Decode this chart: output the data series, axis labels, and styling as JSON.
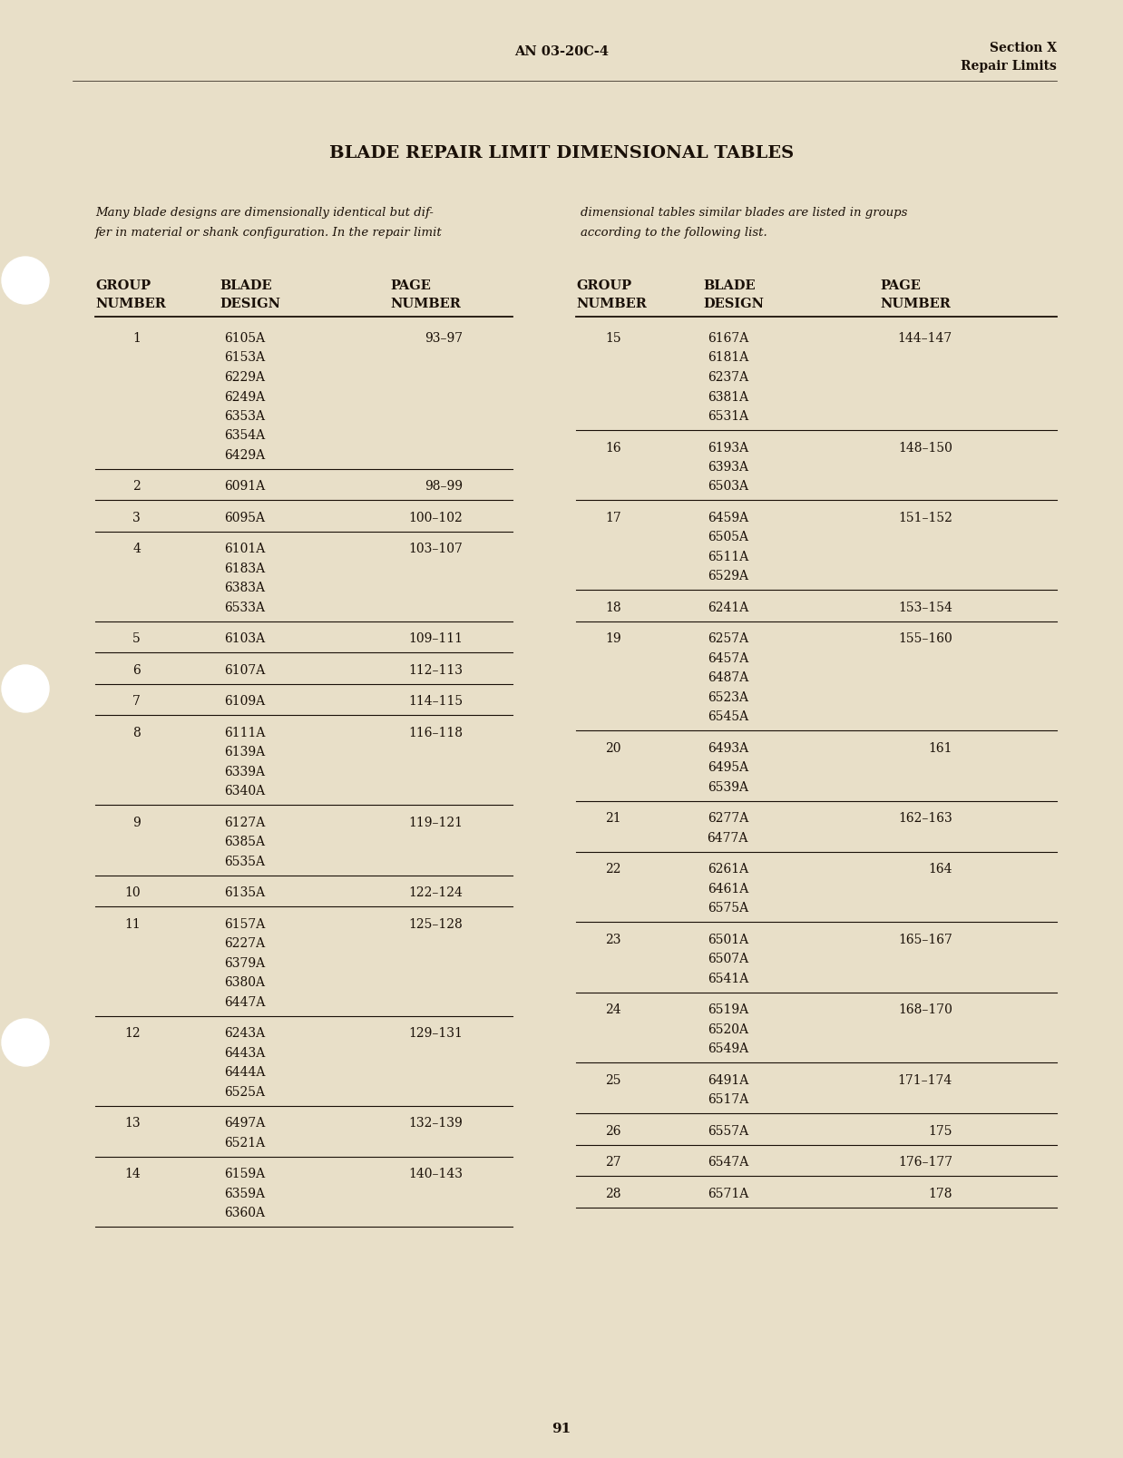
{
  "bg_color": "#e8dfc8",
  "text_color": "#1a1008",
  "page_header_center": "AN 03-20C-4",
  "page_header_right_line1": "Section X",
  "page_header_right_line2": "Repair Limits",
  "title": "BLADE REPAIR LIMIT DIMENSIONAL TABLES",
  "intro_text_left_line1": "Many blade designs are dimensionally identical but dif-",
  "intro_text_left_line2": "fer in material or shank configuration. In the repair limit",
  "intro_text_right_line1": "dimensional tables similar blades are listed in groups",
  "intro_text_right_line2": "according to the following list.",
  "page_number": "91",
  "left_groups": [
    {
      "group": "1",
      "blades": [
        "6105A",
        "6153A",
        "6229A",
        "6249A",
        "6353A",
        "6354A",
        "6429A"
      ],
      "page": "93–97"
    },
    {
      "group": "2",
      "blades": [
        "6091A"
      ],
      "page": "98–99"
    },
    {
      "group": "3",
      "blades": [
        "6095A"
      ],
      "page": "100–102"
    },
    {
      "group": "4",
      "blades": [
        "6101A",
        "6183A",
        "6383A",
        "6533A"
      ],
      "page": "103–107"
    },
    {
      "group": "5",
      "blades": [
        "6103A"
      ],
      "page": "109–111"
    },
    {
      "group": "6",
      "blades": [
        "6107A"
      ],
      "page": "112–113"
    },
    {
      "group": "7",
      "blades": [
        "6109A"
      ],
      "page": "114–115"
    },
    {
      "group": "8",
      "blades": [
        "6111A",
        "6139A",
        "6339A",
        "6340A"
      ],
      "page": "116–118"
    },
    {
      "group": "9",
      "blades": [
        "6127A",
        "6385A",
        "6535A"
      ],
      "page": "119–121"
    },
    {
      "group": "10",
      "blades": [
        "6135A"
      ],
      "page": "122–124"
    },
    {
      "group": "11",
      "blades": [
        "6157A",
        "6227A",
        "6379A",
        "6380A",
        "6447A"
      ],
      "page": "125–128"
    },
    {
      "group": "12",
      "blades": [
        "6243A",
        "6443A",
        "6444A",
        "6525A"
      ],
      "page": "129–131"
    },
    {
      "group": "13",
      "blades": [
        "6497A",
        "6521A"
      ],
      "page": "132–139"
    },
    {
      "group": "14",
      "blades": [
        "6159A",
        "6359A",
        "6360A"
      ],
      "page": "140–143"
    }
  ],
  "right_groups": [
    {
      "group": "15",
      "blades": [
        "6167A",
        "6181A",
        "6237A",
        "6381A",
        "6531A"
      ],
      "page": "144–147"
    },
    {
      "group": "16",
      "blades": [
        "6193A",
        "6393A",
        "6503A"
      ],
      "page": "148–150"
    },
    {
      "group": "17",
      "blades": [
        "6459A",
        "6505A",
        "6511A",
        "6529A"
      ],
      "page": "151–152"
    },
    {
      "group": "18",
      "blades": [
        "6241A"
      ],
      "page": "153–154"
    },
    {
      "group": "19",
      "blades": [
        "6257A",
        "6457A",
        "6487A",
        "6523A",
        "6545A"
      ],
      "page": "155–160"
    },
    {
      "group": "20",
      "blades": [
        "6493A",
        "6495A",
        "6539A"
      ],
      "page": "161"
    },
    {
      "group": "21",
      "blades": [
        "6277A",
        "6477A"
      ],
      "page": "162–163"
    },
    {
      "group": "22",
      "blades": [
        "6261A",
        "6461A",
        "6575A"
      ],
      "page": "164"
    },
    {
      "group": "23",
      "blades": [
        "6501A",
        "6507A",
        "6541A"
      ],
      "page": "165–167"
    },
    {
      "group": "24",
      "blades": [
        "6519A",
        "6520A",
        "6549A"
      ],
      "page": "168–170"
    },
    {
      "group": "25",
      "blades": [
        "6491A",
        "6517A"
      ],
      "page": "171–174"
    },
    {
      "group": "26",
      "blades": [
        "6557A"
      ],
      "page": "175"
    },
    {
      "group": "27",
      "blades": [
        "6547A"
      ],
      "page": "176–177"
    },
    {
      "group": "28",
      "blades": [
        "6571A"
      ],
      "page": "178"
    }
  ]
}
